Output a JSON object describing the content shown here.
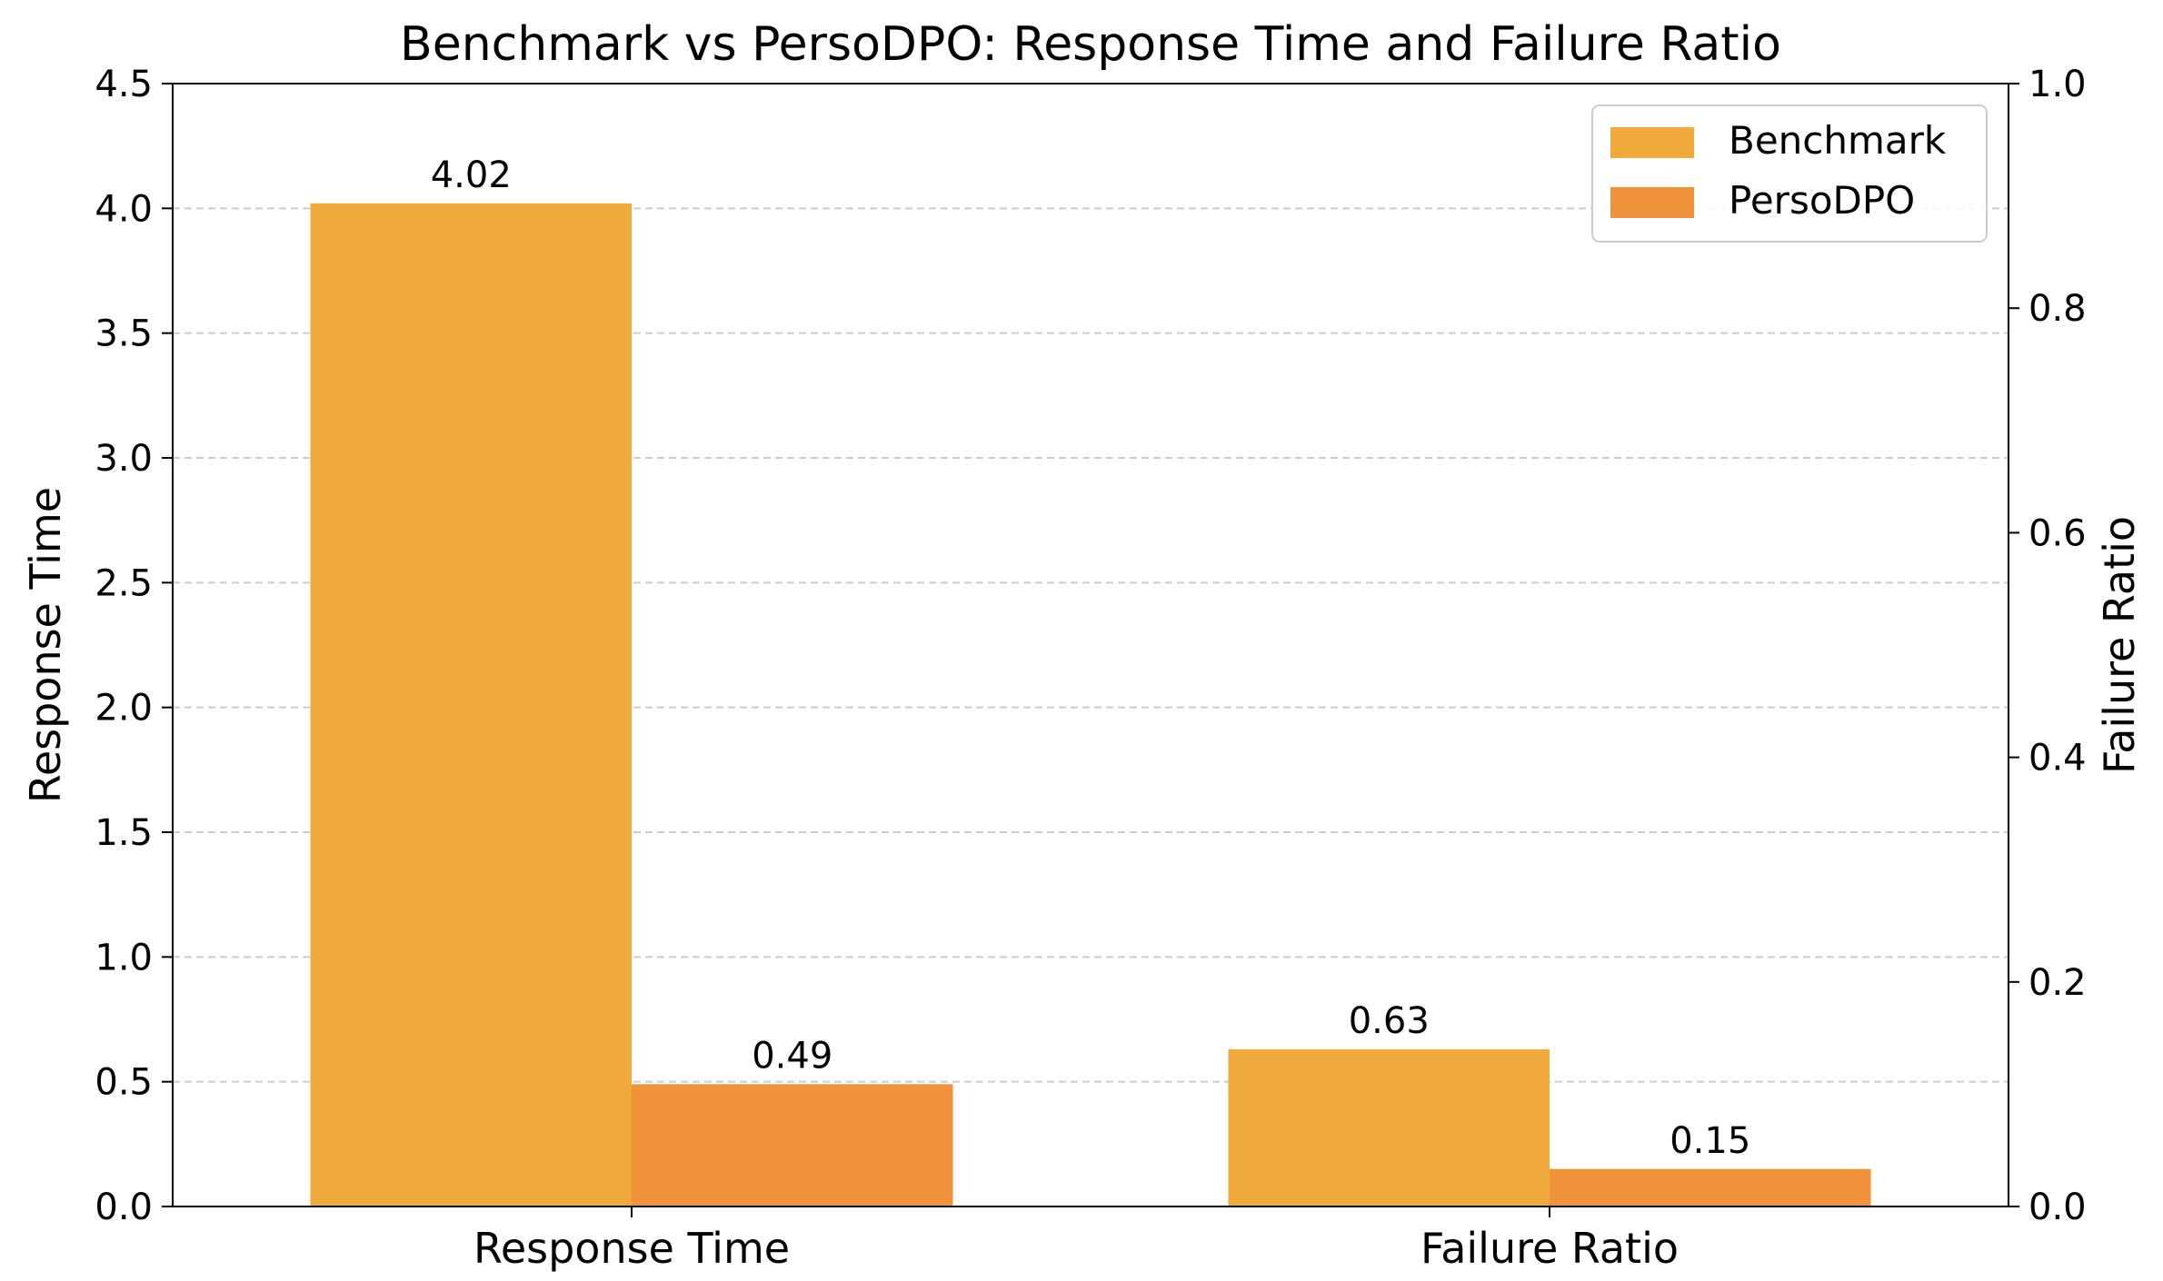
{
  "chart_data": {
    "type": "bar",
    "title": "Benchmark vs PersoDPO: Response Time and Failure Ratio",
    "categories": [
      "Response Time",
      "Failure Ratio"
    ],
    "series": [
      {
        "name": "Benchmark",
        "values": [
          4.02,
          0.63
        ],
        "labels": [
          "4.02",
          "0.63"
        ],
        "color": "#F0A93B"
      },
      {
        "name": "PersoDPO",
        "values": [
          0.49,
          0.15
        ],
        "labels": [
          "0.49",
          "0.15"
        ],
        "color": "#F0923A"
      }
    ],
    "ylabel": "Response Time",
    "y2label": "Failure Ratio",
    "ylim": [
      0,
      4.5
    ],
    "y2lim": [
      0,
      1.0
    ],
    "yticks": [
      "0.0",
      "0.5",
      "1.0",
      "1.5",
      "2.0",
      "2.5",
      "3.0",
      "3.5",
      "4.0",
      "4.5"
    ],
    "y2ticks": [
      "0.0",
      "0.2",
      "0.4",
      "0.6",
      "0.8",
      "1.0"
    ],
    "grid": "horizontal dashed",
    "legend_position": "top-right"
  }
}
